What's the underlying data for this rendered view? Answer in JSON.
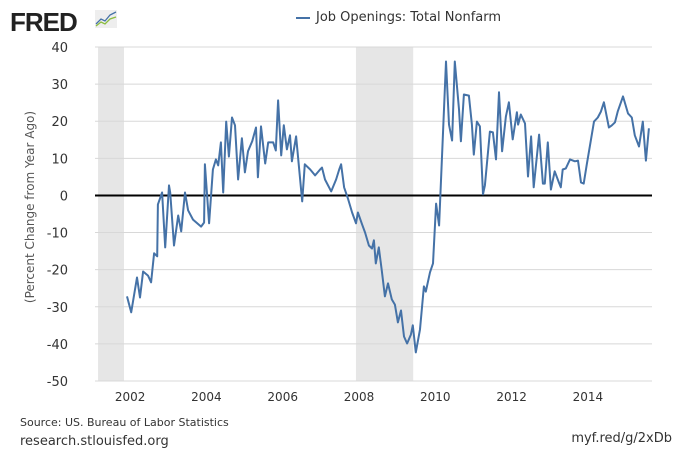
{
  "logo": "FRED",
  "chart_data": {
    "type": "line",
    "title": "Job Openings: Total Nonfarm",
    "ylabel": "(Percent Change from Year Ago)",
    "xlabel": "",
    "xlim": [
      2001.08,
      2015.68
    ],
    "ylim": [
      -50,
      40
    ],
    "yticks": [
      -50,
      -40,
      -30,
      -20,
      -10,
      0,
      10,
      20,
      30,
      40
    ],
    "xticks": [
      2002,
      2004,
      2006,
      2008,
      2010,
      2012,
      2014
    ],
    "grid": true,
    "legend": "top-center",
    "recessions": [
      [
        2001.16,
        2001.84
      ],
      [
        2007.92,
        2009.42
      ]
    ],
    "series": [
      {
        "name": "Job Openings: Total Nonfarm",
        "color": "#4572a7",
        "x": [
          2001.92,
          2002.03,
          2002.18,
          2002.26,
          2002.34,
          2002.47,
          2002.55,
          2002.63,
          2002.71,
          2002.73,
          2002.84,
          2002.92,
          2003.02,
          2003.05,
          2003.15,
          2003.26,
          2003.34,
          2003.44,
          2003.52,
          2003.65,
          2003.76,
          2003.86,
          2003.94,
          2003.96,
          2004.07,
          2004.17,
          2004.25,
          2004.31,
          2004.38,
          2004.44,
          2004.52,
          2004.59,
          2004.67,
          2004.75,
          2004.83,
          2004.93,
          2005.01,
          2005.09,
          2005.2,
          2005.3,
          2005.35,
          2005.43,
          2005.54,
          2005.62,
          2005.75,
          2005.82,
          2005.88,
          2005.96,
          2006.03,
          2006.11,
          2006.19,
          2006.24,
          2006.35,
          2006.51,
          2006.58,
          2006.72,
          2006.85,
          2006.98,
          2007.03,
          2007.11,
          2007.27,
          2007.4,
          2007.48,
          2007.53,
          2007.61,
          2007.71,
          2007.82,
          2007.92,
          2007.97,
          2008.08,
          2008.16,
          2008.26,
          2008.34,
          2008.39,
          2008.44,
          2008.52,
          2008.6,
          2008.68,
          2008.76,
          2008.86,
          2008.94,
          2009.02,
          2009.1,
          2009.18,
          2009.26,
          2009.36,
          2009.41,
          2009.49,
          2009.6,
          2009.7,
          2009.75,
          2009.86,
          2009.94,
          2010.02,
          2010.1,
          2010.2,
          2010.28,
          2010.36,
          2010.44,
          2010.51,
          2010.62,
          2010.67,
          2010.75,
          2010.88,
          2010.96,
          2011.01,
          2011.09,
          2011.17,
          2011.25,
          2011.3,
          2011.43,
          2011.51,
          2011.59,
          2011.67,
          2011.75,
          2011.85,
          2011.93,
          2012.03,
          2012.14,
          2012.17,
          2012.24,
          2012.35,
          2012.43,
          2012.51,
          2012.58,
          2012.72,
          2012.82,
          2012.87,
          2012.95,
          2013.03,
          2013.13,
          2013.24,
          2013.29,
          2013.34,
          2013.42,
          2013.53,
          2013.66,
          2013.74,
          2013.82,
          2013.89,
          2013.97,
          2014.08,
          2014.16,
          2014.26,
          2014.34,
          2014.42,
          2014.55,
          2014.63,
          2014.71,
          2014.78,
          2014.92,
          2015.05,
          2015.15,
          2015.23,
          2015.34,
          2015.44,
          2015.52,
          2015.6
        ],
        "y": [
          -27.2,
          -31.5,
          -22.1,
          -27.5,
          -20.5,
          -21.6,
          -23.4,
          -15.6,
          -16.4,
          -2.4,
          0.8,
          -14.0,
          2.7,
          0.8,
          -13.5,
          -5.4,
          -9.7,
          0.8,
          -4.0,
          -6.5,
          -7.5,
          -8.4,
          -7.3,
          8.4,
          -7.5,
          7.0,
          9.7,
          8.1,
          14.3,
          0.8,
          19.9,
          10.5,
          21.0,
          18.9,
          4.3,
          15.4,
          6.2,
          11.9,
          14.6,
          18.3,
          4.9,
          18.6,
          8.6,
          14.3,
          14.3,
          12.1,
          25.6,
          10.8,
          18.9,
          12.4,
          16.2,
          9.2,
          15.9,
          -1.6,
          8.4,
          7.0,
          5.4,
          7.0,
          7.5,
          4.3,
          1.1,
          4.3,
          7.0,
          8.4,
          2.2,
          -0.8,
          -4.6,
          -7.5,
          -4.6,
          -7.8,
          -10.0,
          -13.5,
          -14.3,
          -12.1,
          -18.3,
          -14.0,
          -20.5,
          -27.2,
          -23.7,
          -28.0,
          -29.4,
          -34.2,
          -31.0,
          -38.0,
          -39.9,
          -37.5,
          -35.0,
          -42.3,
          -36.1,
          -24.5,
          -25.9,
          -20.7,
          -18.3,
          -2.2,
          -8.1,
          16.2,
          36.1,
          19.1,
          14.8,
          36.1,
          23.2,
          14.6,
          27.2,
          26.9,
          19.1,
          11.0,
          19.9,
          18.6,
          0.3,
          2.7,
          17.2,
          17.0,
          9.7,
          27.8,
          11.9,
          21.3,
          25.1,
          15.1,
          22.4,
          19.1,
          21.8,
          19.4,
          5.1,
          15.9,
          2.2,
          16.4,
          3.2,
          3.2,
          14.3,
          1.6,
          6.5,
          3.5,
          2.2,
          7.0,
          7.3,
          9.7,
          9.2,
          9.4,
          3.5,
          3.2,
          8.4,
          15.1,
          19.9,
          21.0,
          22.6,
          25.1,
          18.3,
          18.9,
          19.7,
          22.6,
          26.7,
          22.1,
          21.0,
          16.2,
          13.2,
          19.9,
          9.4,
          18.1
        ]
      }
    ]
  },
  "footer": {
    "source": "Source: US. Bureau of Labor Statistics",
    "site": "research.stlouisfed.org",
    "short_link": "myf.red/g/2xDb"
  }
}
